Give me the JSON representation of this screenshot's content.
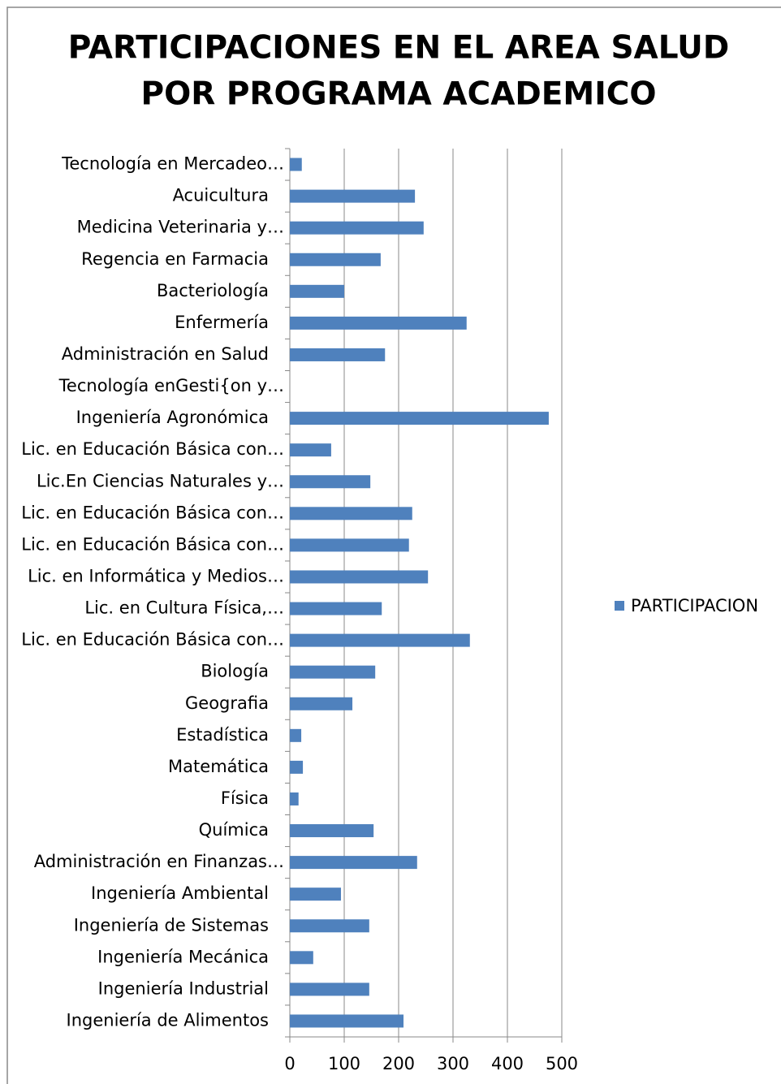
{
  "chart_data": {
    "type": "bar",
    "orientation": "horizontal",
    "title": [
      "PARTICIPACIONES EN EL AREA SALUD",
      "POR PROGRAMA ACADEMICO"
    ],
    "categories": [
      "Tecnología en Mercadeo…",
      "Acuicultura",
      "Medicina Veterinaria y…",
      "Regencia en Farmacia",
      "Bacteriología",
      "Enfermería",
      "Administración en Salud",
      "Tecnología enGesti{on y…",
      "Ingeniería Agronómica",
      "Lic. en Educación Básica con…",
      "Lic.En Ciencias Naturales y…",
      "Lic. en Educación Básica con…",
      "Lic. en Educación Básica con…",
      "Lic. en Informática y Medios…",
      "Lic. en Cultura Física,…",
      "Lic. en Educación Básica con…",
      "Biología",
      "Geografia",
      "Estadística",
      "Matemática",
      "Física",
      "Química",
      "Administración en Finanzas…",
      "Ingeniería Ambiental",
      "Ingeniería de Sistemas",
      "Ingeniería Mecánica",
      "Ingeniería Industrial",
      "Ingeniería de Alimentos"
    ],
    "series": [
      {
        "name": "PARTICIPACION",
        "color": "#4f81bd",
        "values": [
          22,
          230,
          246,
          167,
          100,
          325,
          175,
          0,
          476,
          76,
          148,
          225,
          219,
          254,
          169,
          331,
          157,
          115,
          21,
          24,
          16,
          154,
          234,
          94,
          146,
          43,
          146,
          209
        ]
      }
    ],
    "xlim": [
      0,
      500
    ],
    "xticks": [
      0,
      100,
      200,
      300,
      400,
      500
    ],
    "grid": true,
    "legend": "right"
  }
}
